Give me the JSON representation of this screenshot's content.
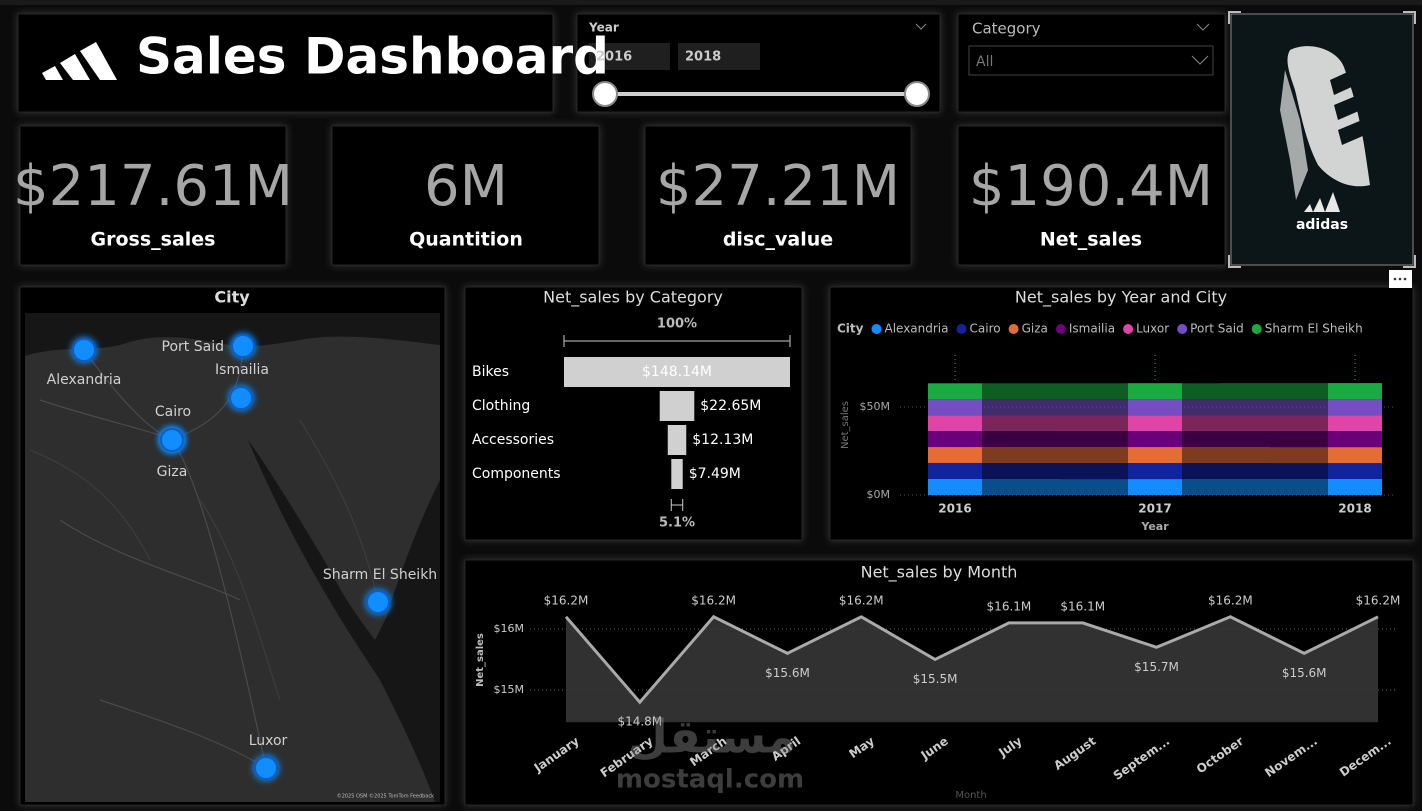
{
  "header": {
    "title": "Sales Dashboard"
  },
  "slicers": {
    "year": {
      "label": "Year",
      "from": "2016",
      "to": "2018"
    },
    "category": {
      "label": "Category",
      "selected": "All"
    }
  },
  "kpis": [
    {
      "value": "$217.61M",
      "label": "Gross_sales"
    },
    {
      "value": "6M",
      "label": "Quantition"
    },
    {
      "value": "$27.21M",
      "label": "disc_value"
    },
    {
      "value": "$190.4M",
      "label": "Net_sales"
    }
  ],
  "image_caption": "adidas",
  "watermark": {
    "arabic": "مستقل",
    "latin": "mostaql.com"
  },
  "chart_data": [
    {
      "type": "map",
      "title": "City",
      "color": "#118dff",
      "categories": [
        "Alexandria",
        "Port Said",
        "Ismailia",
        "Cairo",
        "Giza",
        "Sharm El Sheikh",
        "Luxor"
      ],
      "attribution": "©2025 OSM ©2025 TomTom Feedback"
    },
    {
      "type": "funnel",
      "title": "Net_sales by Category",
      "color": "#d0d0d0",
      "categories": [
        "Bikes",
        "Clothing",
        "Accessories",
        "Components"
      ],
      "values": [
        148.14,
        22.65,
        12.13,
        7.49
      ],
      "value_labels": [
        "$148.14M",
        "$22.65M",
        "$12.13M",
        "$7.49M"
      ],
      "top_label": "100%",
      "bottom_label": "5.1%"
    },
    {
      "type": "ribbon",
      "title": "Net_sales by Year and City",
      "legend_title": "City",
      "categories": [
        "2016",
        "2017",
        "2018"
      ],
      "series": [
        {
          "name": "Alexandria",
          "color": "#118dff",
          "values": [
            9.12,
            9.05,
            9.1
          ]
        },
        {
          "name": "Cairo",
          "color": "#12239e",
          "values": [
            9.08,
            9.11,
            9.03
          ]
        },
        {
          "name": "Giza",
          "color": "#e66c37",
          "values": [
            9.05,
            9.09,
            9.07
          ]
        },
        {
          "name": "Ismailia",
          "color": "#6b007b",
          "values": [
            9.1,
            9.02,
            9.12
          ]
        },
        {
          "name": "Luxor",
          "color": "#e044a7",
          "values": [
            9.01,
            9.08,
            9.06
          ]
        },
        {
          "name": "Port Said",
          "color": "#744ec2",
          "values": [
            9.04,
            9.1,
            9.09
          ]
        },
        {
          "name": "Sharm El Sheikh",
          "color": "#1aab40",
          "values": [
            9.06,
            9.07,
            9.11
          ]
        }
      ],
      "x_label": "Year",
      "y_label": "Net_sales",
      "ylim": [
        0,
        65
      ],
      "yticks": [
        {
          "value": 0,
          "label": "$0M"
        },
        {
          "value": 50,
          "label": "$50M"
        }
      ],
      "grid": true
    },
    {
      "type": "area",
      "title": "Net_sales by Month",
      "color": "#aaaaaa",
      "fill": "#3a3a3a",
      "categories": [
        "January",
        "February",
        "March",
        "April",
        "May",
        "June",
        "July",
        "August",
        "Septem...",
        "October",
        "Novem...",
        "Decem..."
      ],
      "values": [
        16.2,
        14.8,
        16.2,
        15.6,
        16.2,
        15.5,
        16.1,
        16.1,
        15.7,
        16.2,
        15.6,
        16.2
      ],
      "value_labels": [
        "$16.2M",
        "$14.8M",
        "$16.2M",
        "$15.6M",
        "$16.2M",
        "$15.5M",
        "$16.1M",
        "$16.1M",
        "$15.7M",
        "$16.2M",
        "$15.6M",
        "$16.2M"
      ],
      "x_label": "Month",
      "y_label": "Net_sales",
      "ylim": [
        14.47,
        16.5
      ],
      "yticks": [
        {
          "value": 15,
          "label": "$15M"
        },
        {
          "value": 16,
          "label": "$16M"
        }
      ],
      "grid": true
    }
  ]
}
